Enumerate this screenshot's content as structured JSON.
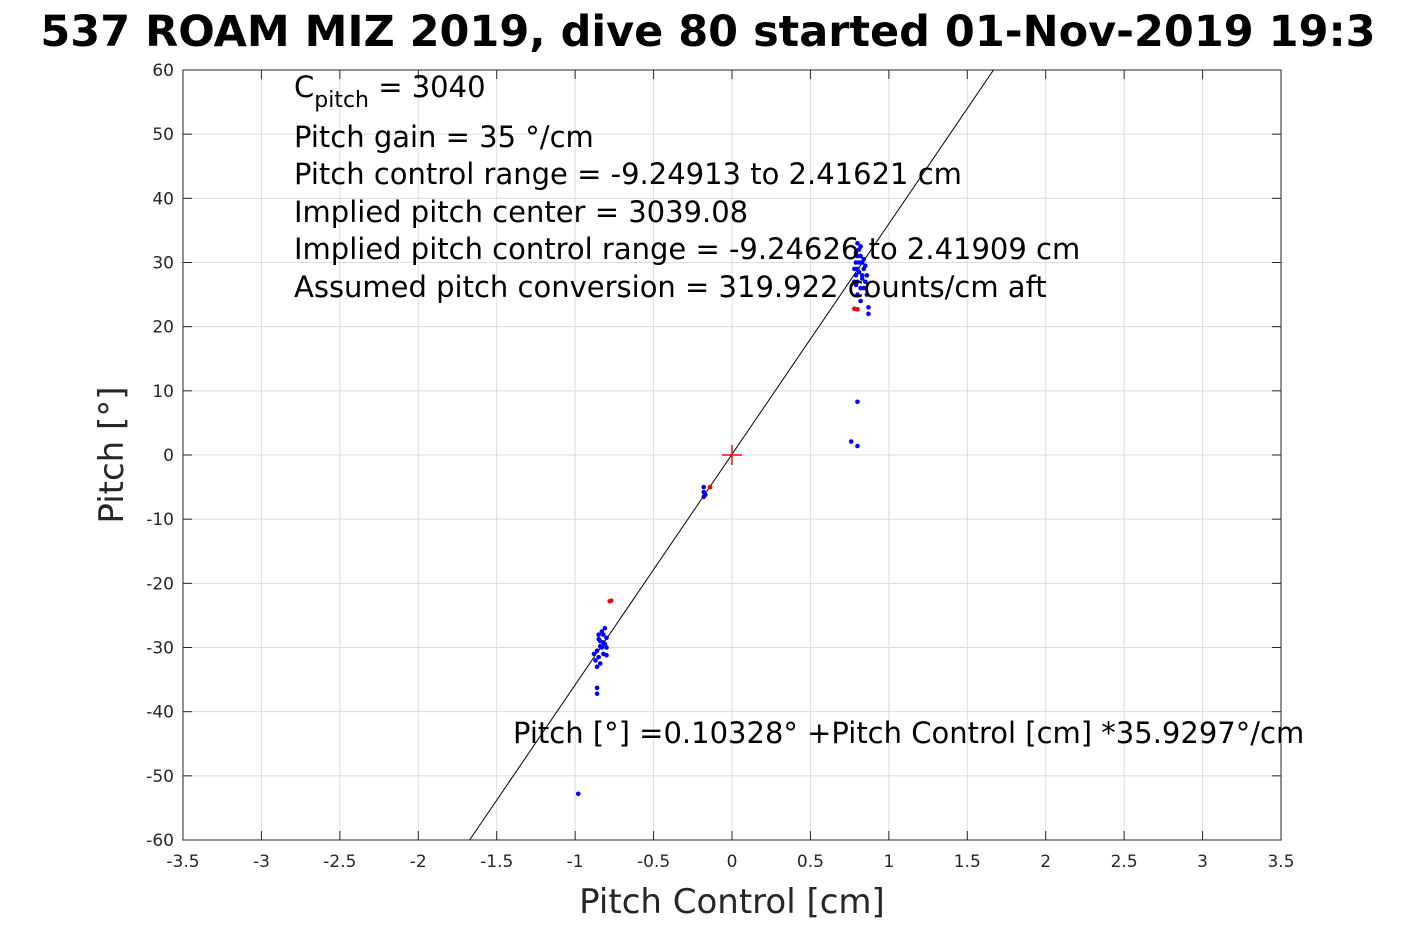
{
  "chart_data": {
    "type": "scatter",
    "title": "537 ROAM MIZ 2019, dive 80 started 01-Nov-2019 19:3",
    "xlabel": "Pitch Control [cm]",
    "ylabel": "Pitch [°]",
    "xlim": [
      -3.5,
      3.5
    ],
    "ylim": [
      -60,
      60
    ],
    "grid": true,
    "x_ticks": [
      -3.5,
      -3,
      -2.5,
      -2,
      -1.5,
      -1,
      -0.5,
      0,
      0.5,
      1,
      1.5,
      2,
      2.5,
      3,
      3.5
    ],
    "x_tick_labels": [
      "-3.5",
      "-3",
      "-2.5",
      "-2",
      "-1.5",
      "-1",
      "-0.5",
      "0",
      "0.5",
      "1",
      "1.5",
      "2",
      "2.5",
      "3",
      "3.5"
    ],
    "y_ticks": [
      -60,
      -50,
      -40,
      -30,
      -20,
      -10,
      0,
      10,
      20,
      30,
      40,
      50,
      60
    ],
    "y_tick_labels": [
      "-60",
      "-50",
      "-40",
      "-30",
      "-20",
      "-10",
      "0",
      "10",
      "20",
      "30",
      "40",
      "50",
      "60"
    ],
    "fit_line": {
      "intercept": 0.10328,
      "slope": 35.9297
    },
    "series": [
      {
        "color": "#0000ff",
        "marker": "dot",
        "points": [
          [
            0.78,
            27
          ],
          [
            0.79,
            28
          ],
          [
            0.8,
            29
          ],
          [
            0.81,
            30
          ],
          [
            0.82,
            31
          ],
          [
            0.83,
            28
          ],
          [
            0.84,
            29
          ],
          [
            0.8,
            27
          ],
          [
            0.79,
            30
          ],
          [
            0.81,
            32
          ],
          [
            0.82,
            26
          ],
          [
            0.85,
            27
          ],
          [
            0.86,
            28
          ],
          [
            0.83,
            30
          ],
          [
            0.8,
            31
          ],
          [
            0.78,
            29
          ],
          [
            0.84,
            26
          ],
          [
            0.86,
            25
          ],
          [
            0.82,
            24
          ],
          [
            0.8,
            25
          ],
          [
            0.81,
            28.5
          ],
          [
            0.83,
            27.5
          ],
          [
            0.79,
            26.5
          ],
          [
            0.85,
            29.5
          ],
          [
            0.87,
            23
          ],
          [
            0.87,
            22
          ],
          [
            0.8,
            33
          ],
          [
            0.82,
            32.5
          ],
          [
            0.79,
            31.5
          ],
          [
            0.84,
            30.5
          ],
          [
            0.8,
            8.3
          ],
          [
            0.76,
            2.1
          ],
          [
            0.8,
            1.4
          ],
          [
            -0.85,
            -28
          ],
          [
            -0.84,
            -29
          ],
          [
            -0.83,
            -30
          ],
          [
            -0.82,
            -31
          ],
          [
            -0.81,
            -29.5
          ],
          [
            -0.8,
            -28.5
          ],
          [
            -0.86,
            -30.5
          ],
          [
            -0.87,
            -32
          ],
          [
            -0.85,
            -31.5
          ],
          [
            -0.83,
            -27.5
          ],
          [
            -0.81,
            -27
          ],
          [
            -0.8,
            -30
          ],
          [
            -0.84,
            -32.5
          ],
          [
            -0.86,
            -33
          ],
          [
            -0.82,
            -28
          ],
          [
            -0.88,
            -31
          ],
          [
            -0.84,
            -29.8
          ],
          [
            -0.82,
            -29.2
          ],
          [
            -0.8,
            -31.2
          ],
          [
            -0.85,
            -28.7
          ],
          [
            -0.86,
            -36.3
          ],
          [
            -0.86,
            -37.2
          ],
          [
            -0.18,
            -5
          ],
          [
            -0.18,
            -5.8
          ],
          [
            -0.18,
            -6.5
          ],
          [
            -0.17,
            -6.2
          ],
          [
            -0.98,
            -52.8
          ]
        ]
      },
      {
        "color": "#ff0000",
        "marker": "dot",
        "points": [
          [
            0.78,
            22.8
          ],
          [
            0.8,
            22.7
          ],
          [
            -0.78,
            -22.8
          ],
          [
            -0.77,
            -22.7
          ],
          [
            -0.14,
            -5.0
          ]
        ]
      }
    ],
    "center_marker": {
      "x": 0,
      "y": 0,
      "color": "#ff0000",
      "marker": "plus"
    },
    "annotations": [
      {
        "prefix": "C",
        "subscript": "pitch",
        "suffix": " = 3040"
      },
      {
        "text": "Pitch gain = 35 °/cm"
      },
      {
        "text": "Pitch control range = -9.24913 to 2.41621 cm"
      },
      {
        "text": "Implied pitch center = 3039.08"
      },
      {
        "text": "Implied pitch control range = -9.24626 to 2.41909 cm"
      },
      {
        "text": "Assumed pitch conversion = 319.922 counts/cm aft"
      },
      {
        "text": "Pitch [°] =0.10328° +Pitch Control [cm] *35.9297°/cm"
      }
    ]
  }
}
